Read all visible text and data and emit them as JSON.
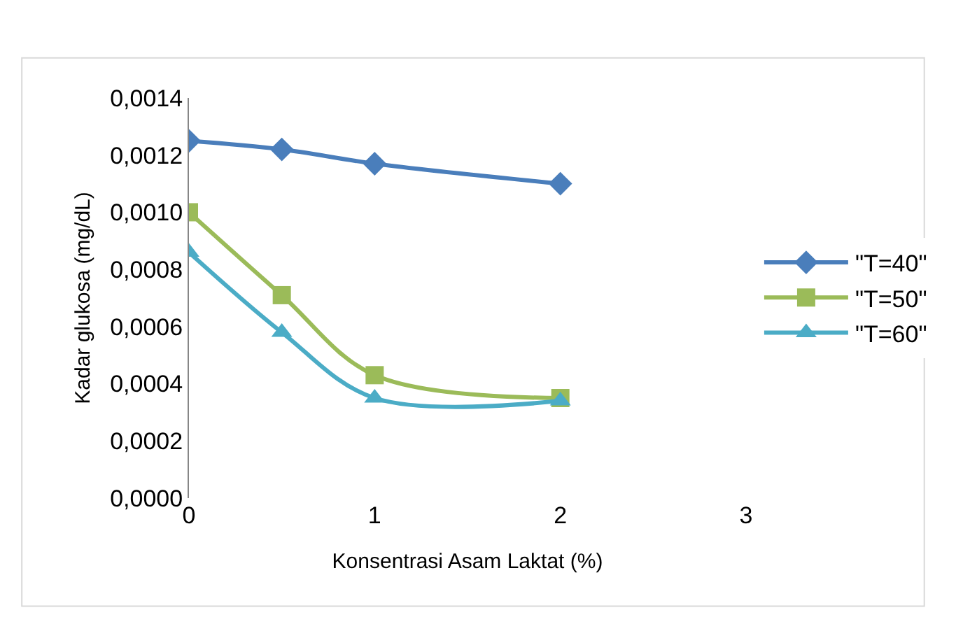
{
  "chart_data": {
    "type": "line",
    "xlabel": "Konsentrasi Asam Laktat (%)",
    "ylabel": "Kadar glukosa (mg/dL)",
    "x": [
      0,
      0.5,
      1,
      2
    ],
    "series": [
      {
        "name": "\"T=40\"",
        "color": "#4a7ebb",
        "marker": "diamond",
        "values": [
          0.00125,
          0.00122,
          0.00117,
          0.0011
        ]
      },
      {
        "name": "\"T=50\"",
        "color": "#9bbb59",
        "marker": "square",
        "values": [
          0.001,
          0.00071,
          0.00043,
          0.00035
        ]
      },
      {
        "name": "\"T=60\"",
        "color": "#4bacc6",
        "marker": "triangle",
        "values": [
          0.00086,
          0.00058,
          0.00035,
          0.00034
        ]
      }
    ],
    "xlim": [
      0,
      3
    ],
    "xticks": [
      0,
      1,
      2,
      3
    ],
    "ylim": [
      0,
      0.0014
    ],
    "yticks": [
      {
        "value": 0,
        "label": "0,0000"
      },
      {
        "value": 0.0002,
        "label": "0,0002"
      },
      {
        "value": 0.0004,
        "label": "0,0004"
      },
      {
        "value": 0.0006,
        "label": "0,0006"
      },
      {
        "value": 0.0008,
        "label": "0,0008"
      },
      {
        "value": 0.001,
        "label": "0,0010"
      },
      {
        "value": 0.0012,
        "label": "0,0012"
      },
      {
        "value": 0.0014,
        "label": "0,0014"
      }
    ],
    "grid": false,
    "legend": "right",
    "line_style": "solid"
  }
}
